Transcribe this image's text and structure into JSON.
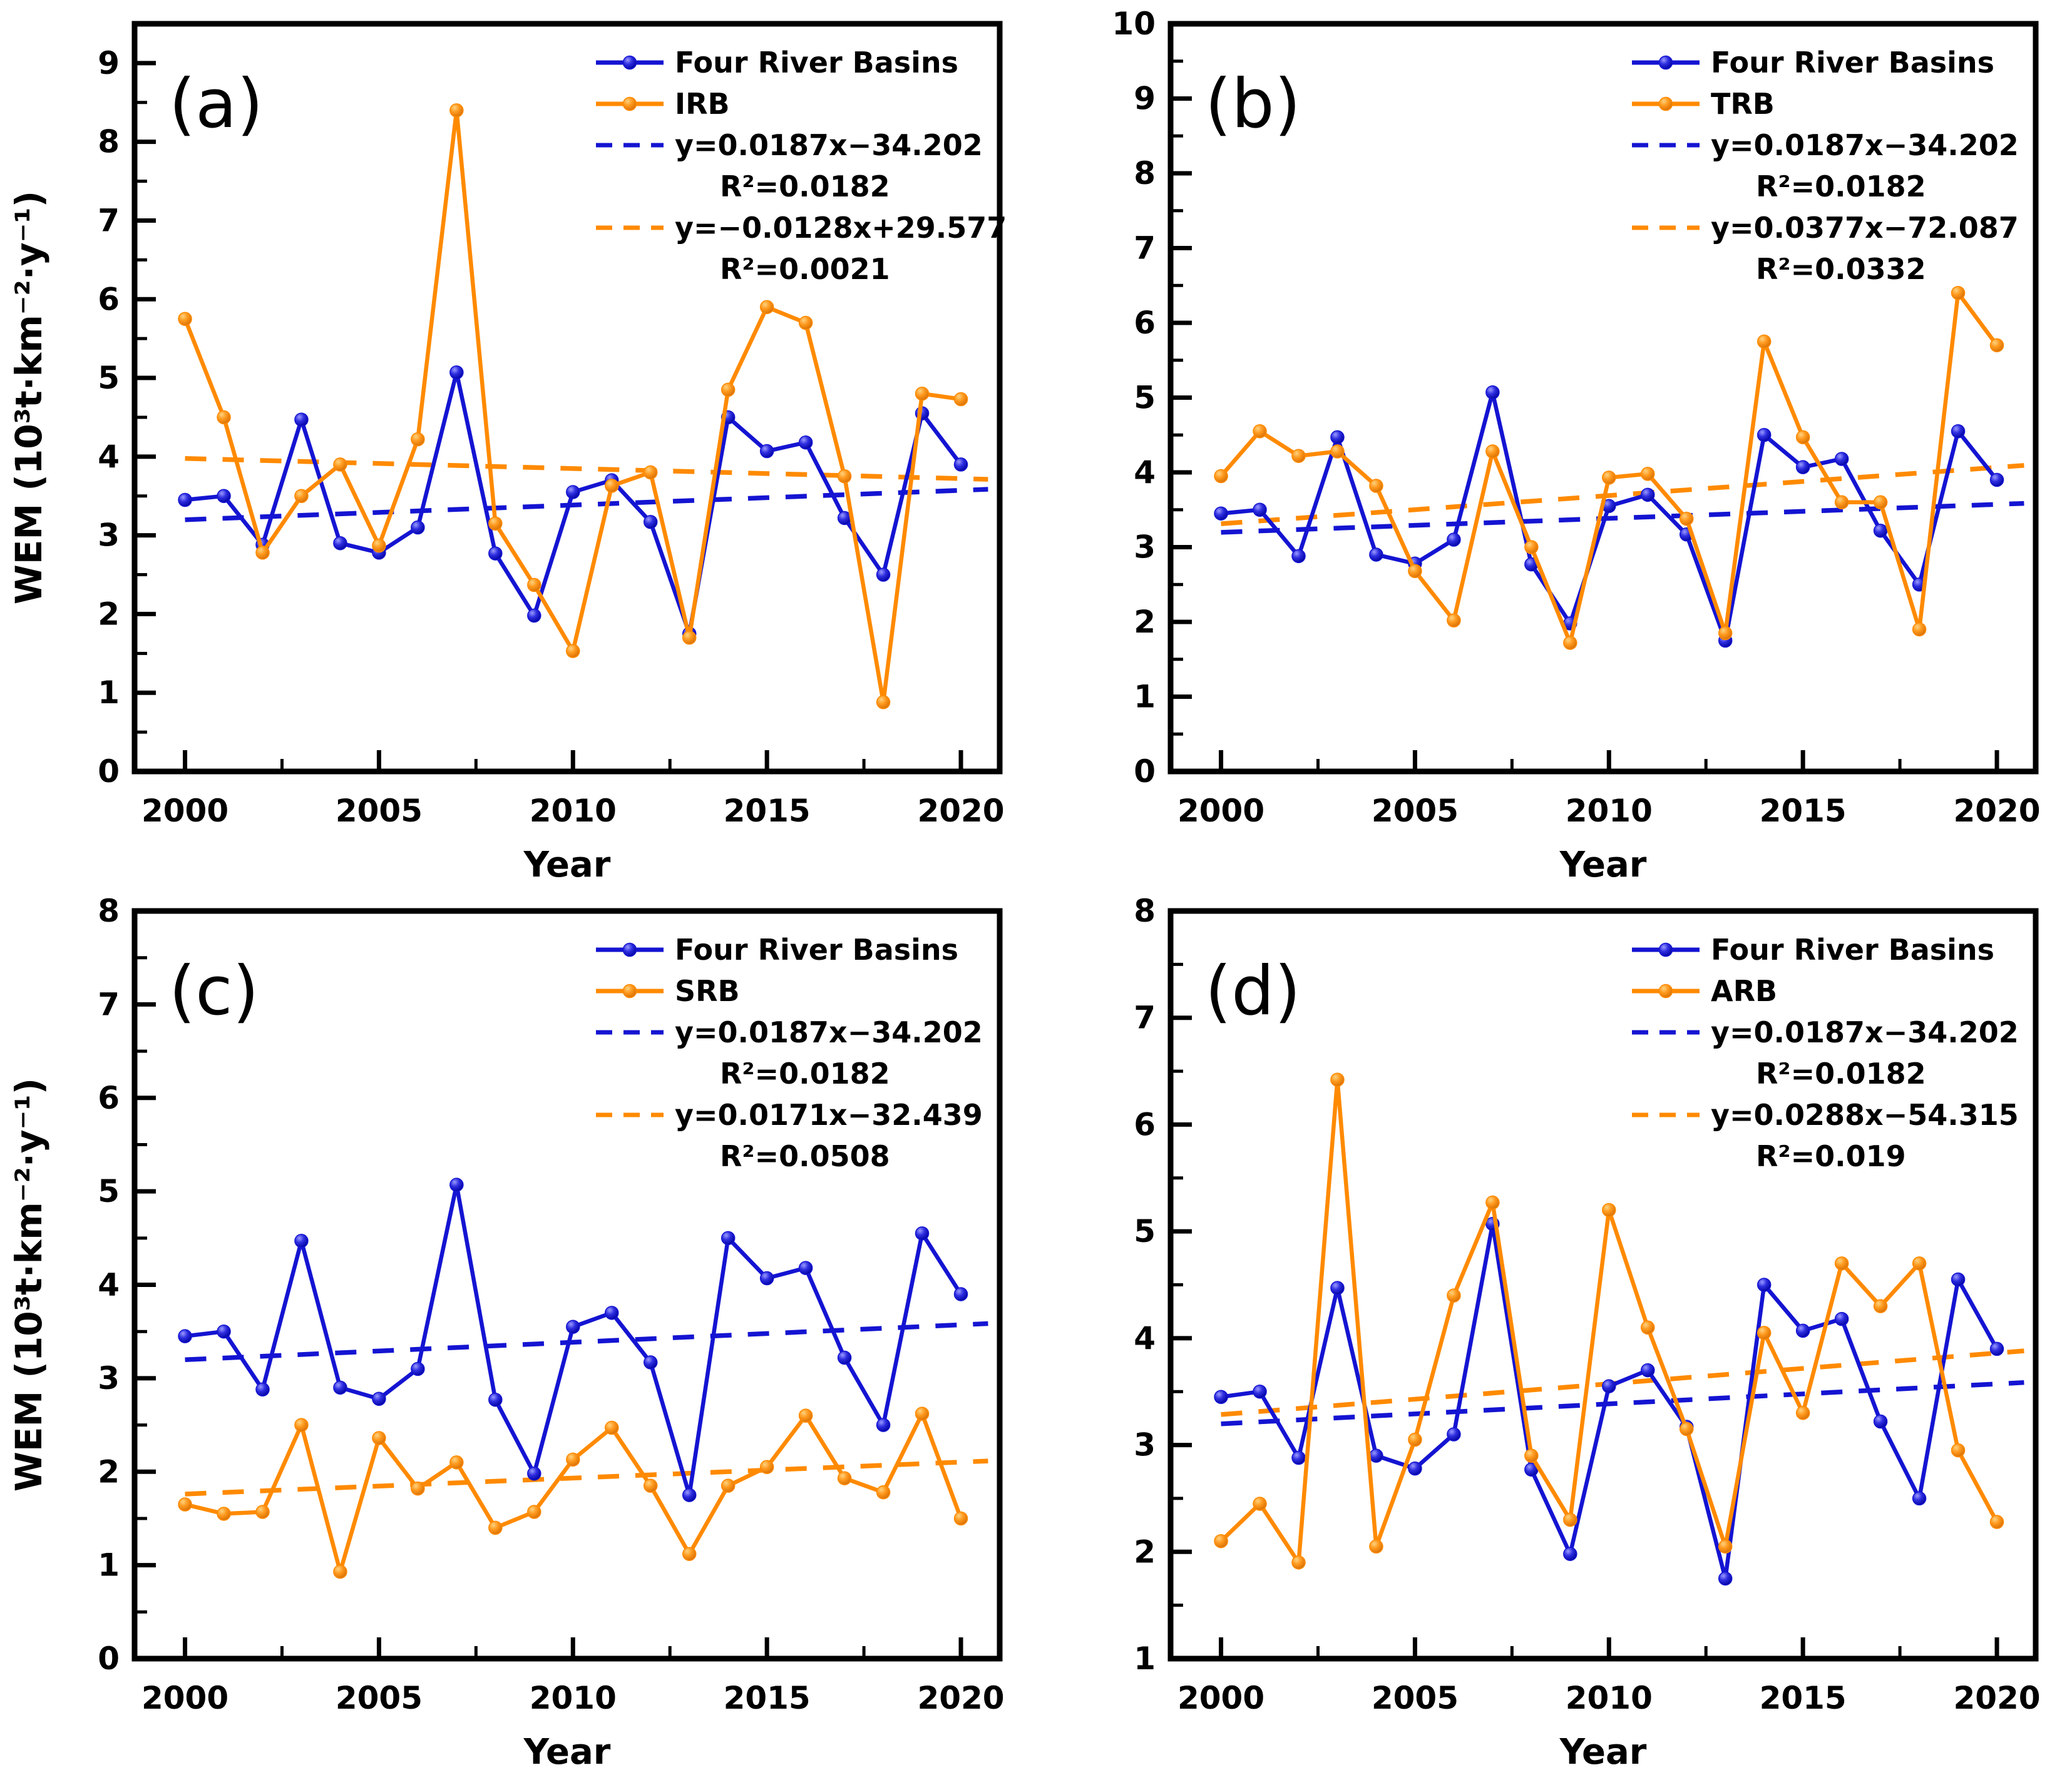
{
  "page": {
    "background": "#ffffff"
  },
  "axes_shared": {
    "xlabel": "Year",
    "ylabel": "WEM (10³t·km⁻²·y⁻¹)",
    "x_tick_labels": [
      "2000",
      "2005",
      "2010",
      "2015",
      "2020"
    ]
  },
  "colors": {
    "four_river_basins": "#1414d2",
    "sub_basin": "#ff8a00",
    "axis": "#000000"
  },
  "chart_data": [
    {
      "type": "line",
      "panel_letter": "(a)",
      "x": [
        2000,
        2001,
        2002,
        2003,
        2004,
        2005,
        2006,
        2007,
        2008,
        2009,
        2010,
        2011,
        2012,
        2013,
        2014,
        2015,
        2016,
        2017,
        2018,
        2019,
        2020
      ],
      "series": [
        {
          "name": "Four River Basins",
          "color": "#1414d2",
          "values": [
            3.45,
            3.5,
            2.88,
            4.47,
            2.9,
            2.78,
            3.1,
            5.07,
            2.77,
            1.98,
            3.55,
            3.7,
            3.17,
            1.75,
            4.5,
            4.07,
            4.18,
            3.22,
            2.5,
            4.55,
            3.9
          ]
        },
        {
          "name": "IRB",
          "color": "#ff8a00",
          "values": [
            5.75,
            4.5,
            2.78,
            3.5,
            3.9,
            2.87,
            4.22,
            8.4,
            3.15,
            2.37,
            1.53,
            3.63,
            3.8,
            1.7,
            4.85,
            5.9,
            5.7,
            3.75,
            0.88,
            4.8,
            4.73
          ]
        }
      ],
      "trendlines": [
        {
          "label": "y=0.0187x−34.202",
          "r2": "R²=0.0182",
          "slope": 0.0187,
          "intercept": -34.202,
          "color": "#1414d2"
        },
        {
          "label": "y=−0.0128x+29.577",
          "r2": "R²=0.0021",
          "slope": -0.0128,
          "intercept": 29.577,
          "color": "#ff8a00"
        }
      ],
      "xlabel": "Year",
      "ylabel": "WEM (10³t·km⁻²·y⁻¹)",
      "xlim": [
        1998.7,
        2021.0
      ],
      "ylim": [
        0,
        9.5
      ],
      "xticks": [
        2000,
        2005,
        2010,
        2015,
        2020
      ],
      "xminor": [
        2002.5,
        2007.5,
        2012.5,
        2017.5
      ],
      "yticks": [
        0,
        1,
        2,
        3,
        4,
        5,
        6,
        7,
        8,
        9
      ],
      "legend_position": "top-right",
      "grid": false
    },
    {
      "type": "line",
      "panel_letter": "(b)",
      "x": [
        2000,
        2001,
        2002,
        2003,
        2004,
        2005,
        2006,
        2007,
        2008,
        2009,
        2010,
        2011,
        2012,
        2013,
        2014,
        2015,
        2016,
        2017,
        2018,
        2019,
        2020
      ],
      "series": [
        {
          "name": "Four River Basins",
          "color": "#1414d2",
          "values": [
            3.45,
            3.5,
            2.88,
            4.47,
            2.9,
            2.78,
            3.1,
            5.07,
            2.77,
            1.98,
            3.55,
            3.7,
            3.17,
            1.75,
            4.5,
            4.07,
            4.18,
            3.22,
            2.5,
            4.55,
            3.9
          ]
        },
        {
          "name": "TRB",
          "color": "#ff8a00",
          "values": [
            3.95,
            4.55,
            4.22,
            4.28,
            3.82,
            2.68,
            2.02,
            4.28,
            3.0,
            1.72,
            3.93,
            3.98,
            3.38,
            1.85,
            5.75,
            4.47,
            3.6,
            3.6,
            1.9,
            6.4,
            5.7
          ]
        }
      ],
      "trendlines": [
        {
          "label": "y=0.0187x−34.202",
          "r2": "R²=0.0182",
          "slope": 0.0187,
          "intercept": -34.202,
          "color": "#1414d2"
        },
        {
          "label": "y=0.0377x−72.087",
          "r2": "R²=0.0332",
          "slope": 0.0377,
          "intercept": -72.087,
          "color": "#ff8a00"
        }
      ],
      "xlabel": "Year",
      "ylabel": "",
      "xlim": [
        1998.7,
        2021.0
      ],
      "ylim": [
        0,
        10
      ],
      "xticks": [
        2000,
        2005,
        2010,
        2015,
        2020
      ],
      "xminor": [
        2002.5,
        2007.5,
        2012.5,
        2017.5
      ],
      "yticks": [
        0,
        1,
        2,
        3,
        4,
        5,
        6,
        7,
        8,
        9,
        10
      ],
      "legend_position": "top-right",
      "grid": false
    },
    {
      "type": "line",
      "panel_letter": "(c)",
      "x": [
        2000,
        2001,
        2002,
        2003,
        2004,
        2005,
        2006,
        2007,
        2008,
        2009,
        2010,
        2011,
        2012,
        2013,
        2014,
        2015,
        2016,
        2017,
        2018,
        2019,
        2020
      ],
      "series": [
        {
          "name": "Four River Basins",
          "color": "#1414d2",
          "values": [
            3.45,
            3.5,
            2.88,
            4.47,
            2.9,
            2.78,
            3.1,
            5.07,
            2.77,
            1.98,
            3.55,
            3.7,
            3.17,
            1.75,
            4.5,
            4.07,
            4.18,
            3.22,
            2.5,
            4.55,
            3.9
          ]
        },
        {
          "name": "SRB",
          "color": "#ff8a00",
          "values": [
            1.65,
            1.55,
            1.57,
            2.5,
            0.93,
            2.36,
            1.82,
            2.1,
            1.4,
            1.57,
            2.13,
            2.47,
            1.85,
            1.12,
            1.85,
            2.05,
            2.6,
            1.93,
            1.78,
            2.62,
            1.5
          ]
        }
      ],
      "trendlines": [
        {
          "label": "y=0.0187x−34.202",
          "r2": "R²=0.0182",
          "slope": 0.0187,
          "intercept": -34.202,
          "color": "#1414d2"
        },
        {
          "label": "y=0.0171x−32.439",
          "r2": "R²=0.0508",
          "slope": 0.0171,
          "intercept": -32.439,
          "color": "#ff8a00"
        }
      ],
      "xlabel": "Year",
      "ylabel": "WEM (10³t·km⁻²·y⁻¹)",
      "xlim": [
        1998.7,
        2021.0
      ],
      "ylim": [
        0,
        8
      ],
      "xticks": [
        2000,
        2005,
        2010,
        2015,
        2020
      ],
      "xminor": [
        2002.5,
        2007.5,
        2012.5,
        2017.5
      ],
      "yticks": [
        0,
        1,
        2,
        3,
        4,
        5,
        6,
        7,
        8
      ],
      "legend_position": "top-right",
      "grid": false
    },
    {
      "type": "line",
      "panel_letter": "(d)",
      "x": [
        2000,
        2001,
        2002,
        2003,
        2004,
        2005,
        2006,
        2007,
        2008,
        2009,
        2010,
        2011,
        2012,
        2013,
        2014,
        2015,
        2016,
        2017,
        2018,
        2019,
        2020
      ],
      "series": [
        {
          "name": "Four River Basins",
          "color": "#1414d2",
          "values": [
            3.45,
            3.5,
            2.88,
            4.47,
            2.9,
            2.78,
            3.1,
            5.07,
            2.77,
            1.98,
            3.55,
            3.7,
            3.17,
            1.75,
            4.5,
            4.07,
            4.18,
            3.22,
            2.5,
            4.55,
            3.9
          ]
        },
        {
          "name": "ARB",
          "color": "#ff8a00",
          "values": [
            2.1,
            2.45,
            1.9,
            6.42,
            2.05,
            3.05,
            4.4,
            5.27,
            2.9,
            2.3,
            5.2,
            4.1,
            3.15,
            2.05,
            4.05,
            3.3,
            4.7,
            4.3,
            4.7,
            2.95,
            2.28
          ]
        }
      ],
      "trendlines": [
        {
          "label": "y=0.0187x−34.202",
          "r2": "R²=0.0182",
          "slope": 0.0187,
          "intercept": -34.202,
          "color": "#1414d2"
        },
        {
          "label": "y=0.0288x−54.315",
          "r2": "R²=0.019",
          "slope": 0.0288,
          "intercept": -54.315,
          "color": "#ff8a00"
        }
      ],
      "xlabel": "Year",
      "ylabel": "",
      "xlim": [
        1998.7,
        2021.0
      ],
      "ylim": [
        1,
        8
      ],
      "xticks": [
        2000,
        2005,
        2010,
        2015,
        2020
      ],
      "xminor": [
        2002.5,
        2007.5,
        2012.5,
        2017.5
      ],
      "yticks": [
        1,
        2,
        3,
        4,
        5,
        6,
        7,
        8
      ],
      "legend_position": "top-right",
      "grid": false
    }
  ]
}
